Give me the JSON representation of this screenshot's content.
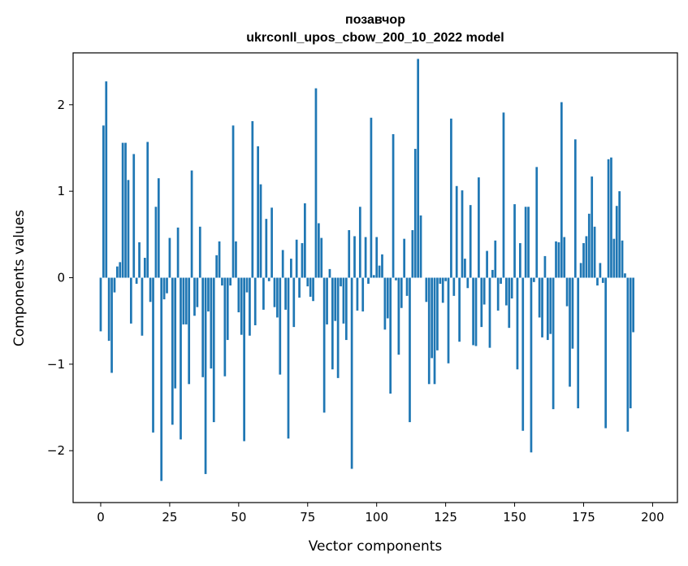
{
  "chart_data": {
    "type": "bar",
    "title": "позавчор",
    "subtitle": "ukrconll_upos_cbow_200_10_2022 model",
    "xlabel": "Vector components",
    "ylabel": "Components values",
    "xlim": [
      -10,
      209
    ],
    "ylim": [
      -2.6,
      2.6
    ],
    "xticks": [
      0,
      25,
      50,
      75,
      100,
      125,
      150,
      175,
      200
    ],
    "xtick_labels": [
      "0",
      "25",
      "50",
      "75",
      "100",
      "125",
      "150",
      "175",
      "200"
    ],
    "yticks": [
      -2,
      -1,
      0,
      1,
      2
    ],
    "ytick_labels": [
      "−2",
      "−1",
      "0",
      "1",
      "2"
    ],
    "grid": false,
    "legend": "none",
    "bar_color": "#1f77b4",
    "values": [
      -0.62,
      1.76,
      2.27,
      -0.73,
      -1.1,
      -0.17,
      0.13,
      0.18,
      1.56,
      1.56,
      1.13,
      -0.53,
      1.43,
      -0.07,
      0.41,
      -0.67,
      0.23,
      1.57,
      -0.28,
      -1.79,
      0.82,
      1.15,
      -2.35,
      -0.25,
      -0.18,
      0.46,
      -1.7,
      -1.28,
      0.58,
      -1.87,
      -0.54,
      -0.54,
      -1.23,
      1.24,
      -0.44,
      -0.34,
      0.59,
      -1.15,
      -2.27,
      -0.39,
      -1.05,
      -1.67,
      0.26,
      0.42,
      -0.09,
      -1.14,
      -0.72,
      -0.09,
      1.76,
      0.42,
      -0.4,
      -0.66,
      -1.89,
      -0.17,
      -0.67,
      1.81,
      -0.55,
      1.52,
      1.08,
      -0.37,
      0.68,
      -0.04,
      0.81,
      -0.34,
      -0.46,
      -1.12,
      0.32,
      -0.37,
      -1.86,
      0.22,
      -0.57,
      0.44,
      -0.23,
      0.4,
      0.86,
      -0.1,
      -0.22,
      -0.27,
      2.19,
      0.63,
      0.46,
      -1.56,
      -0.54,
      0.1,
      -1.06,
      -0.5,
      -1.16,
      -0.1,
      -0.53,
      -0.72,
      0.55,
      -2.21,
      0.48,
      -0.38,
      0.82,
      -0.39,
      0.47,
      -0.07,
      1.85,
      0.03,
      0.47,
      0.14,
      0.27,
      -0.6,
      -0.47,
      -1.34,
      1.66,
      -0.03,
      -0.89,
      -0.35,
      0.45,
      -0.21,
      -1.67,
      0.55,
      1.49,
      2.53,
      0.72,
      0.0,
      -0.28,
      -1.23,
      -0.93,
      -1.23,
      -0.84,
      -0.07,
      -0.29,
      -0.04,
      -0.99,
      1.84,
      -0.21,
      1.06,
      -0.74,
      1.01,
      0.22,
      -0.12,
      0.84,
      -0.78,
      -0.79,
      1.16,
      -0.57,
      -0.31,
      0.31,
      -0.81,
      0.09,
      0.43,
      -0.38,
      -0.07,
      1.91,
      -0.32,
      -0.58,
      -0.24,
      0.85,
      -1.06,
      0.4,
      -1.77,
      0.82,
      0.82,
      -2.02,
      -0.05,
      1.28,
      -0.46,
      -0.69,
      0.25,
      -0.72,
      -0.65,
      -1.52,
      0.42,
      0.41,
      2.03,
      0.47,
      -0.33,
      -1.26,
      -0.82,
      1.6,
      -1.51,
      0.17,
      0.4,
      0.48,
      0.74,
      1.17,
      0.59,
      -0.09,
      0.17,
      -0.06,
      -1.74,
      1.37,
      1.39,
      0.45,
      0.83,
      1.0,
      0.43,
      0.05,
      -1.78,
      -1.51,
      -0.63
    ]
  }
}
